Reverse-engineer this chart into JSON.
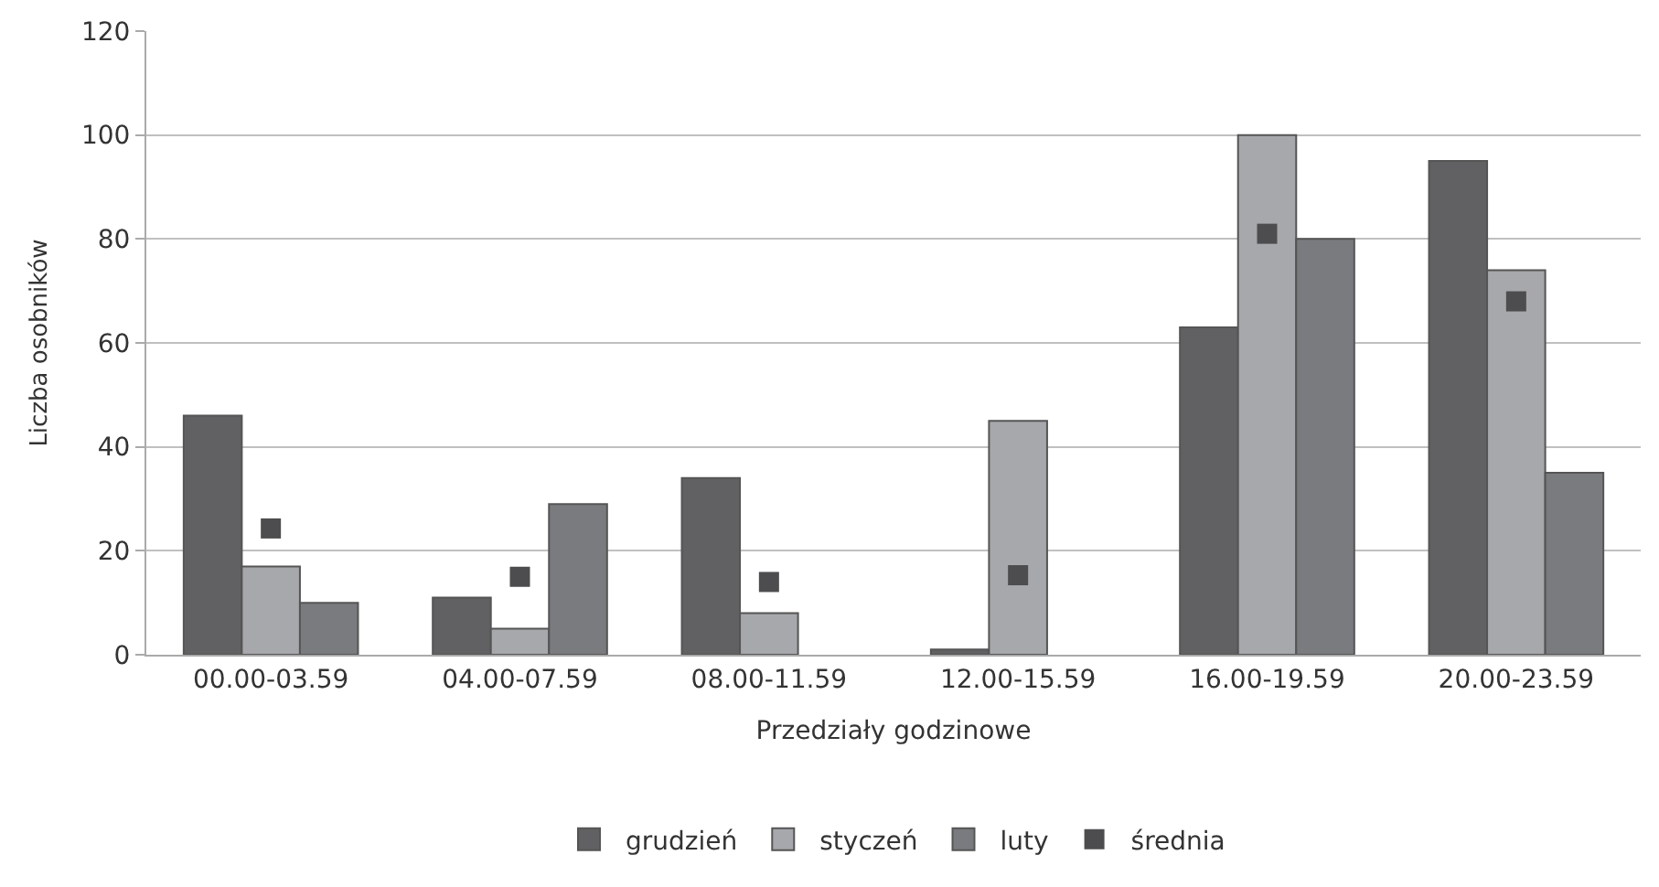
{
  "chart_data": {
    "type": "bar",
    "xlabel": "Przedziały godzinowe",
    "ylabel": "Liczba osobników",
    "categories": [
      "00.00-03.59",
      "04.00-07.59",
      "08.00-11.59",
      "12.00-15.59",
      "16.00-19.59",
      "20.00-23.59"
    ],
    "series": [
      {
        "name": "grudzień",
        "color": "#616163",
        "values": [
          46,
          11,
          34,
          1,
          63,
          95
        ]
      },
      {
        "name": "styczeń",
        "color": "#a7a8ab",
        "values": [
          17,
          5,
          8,
          45,
          100,
          74
        ]
      },
      {
        "name": "luty",
        "color": "#7a7b7e",
        "values": [
          10,
          29,
          null,
          null,
          80,
          35
        ]
      },
      {
        "name": "średnia",
        "type": "scatter",
        "marker": "square",
        "color": "#4d4d4f",
        "values": [
          24.3,
          15,
          14,
          15.3,
          81,
          68
        ]
      }
    ],
    "ylim": [
      0,
      120
    ],
    "yticks": [
      0,
      20,
      40,
      60,
      80,
      100,
      120
    ],
    "grid": "y",
    "legend": "bottom"
  }
}
